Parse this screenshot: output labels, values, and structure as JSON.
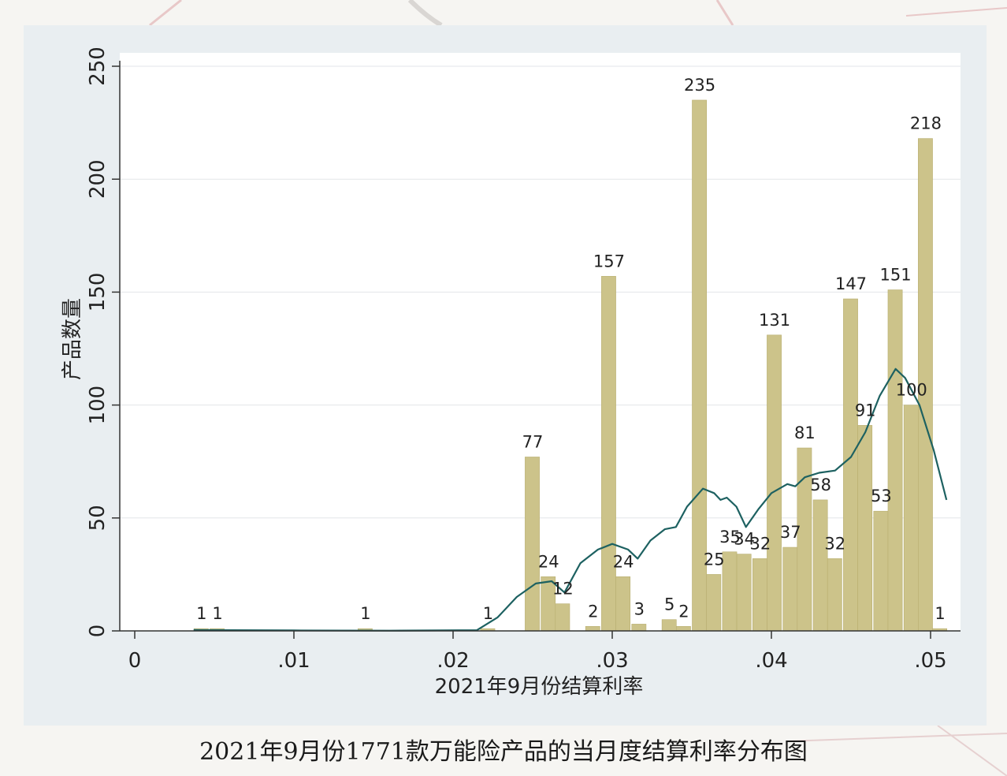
{
  "caption": "2021年9月份1771款万能险产品的当月度结算利率分布图",
  "colors": {
    "bar_fill": "#ccc38a",
    "bar_stroke": "#b8ae70",
    "density_line": "#1d6161",
    "plot_bg": "#ffffff",
    "panel_bg": "#e9eef1",
    "text": "#222222"
  },
  "chart_data": {
    "type": "bar",
    "title": "",
    "xlabel": "2021年9月份结算利率",
    "ylabel": "产品数量",
    "xlim": [
      0,
      0.051
    ],
    "ylim": [
      0,
      250
    ],
    "grid": true,
    "x_ticks": [
      {
        "value": 0,
        "label": "0"
      },
      {
        "value": 0.01,
        "label": ".01"
      },
      {
        "value": 0.02,
        "label": ".02"
      },
      {
        "value": 0.03,
        "label": ".03"
      },
      {
        "value": 0.04,
        "label": ".04"
      },
      {
        "value": 0.05,
        "label": ".05"
      }
    ],
    "y_ticks": [
      {
        "value": 0,
        "label": "0"
      },
      {
        "value": 50,
        "label": "50"
      },
      {
        "value": 100,
        "label": "100"
      },
      {
        "value": 150,
        "label": "150"
      },
      {
        "value": 200,
        "label": "200"
      },
      {
        "value": 250,
        "label": "250"
      }
    ],
    "bin_width": 0.00095,
    "bars": [
      {
        "x": 0.0042,
        "value": 1,
        "label": "1"
      },
      {
        "x": 0.0052,
        "value": 1,
        "label": "1"
      },
      {
        "x": 0.0145,
        "value": 1,
        "label": "1"
      },
      {
        "x": 0.0222,
        "value": 1,
        "label": "1"
      },
      {
        "x": 0.025,
        "value": 77,
        "label": "77"
      },
      {
        "x": 0.026,
        "value": 24,
        "label": "24"
      },
      {
        "x": 0.0269,
        "value": 12,
        "label": "12"
      },
      {
        "x": 0.0288,
        "value": 2,
        "label": "2"
      },
      {
        "x": 0.0298,
        "value": 157,
        "label": "157"
      },
      {
        "x": 0.0307,
        "value": 24,
        "label": "24"
      },
      {
        "x": 0.0317,
        "value": 3,
        "label": "3"
      },
      {
        "x": 0.0336,
        "value": 5,
        "label": "5"
      },
      {
        "x": 0.0345,
        "value": 2,
        "label": "2"
      },
      {
        "x": 0.0355,
        "value": 235,
        "label": "235"
      },
      {
        "x": 0.0364,
        "value": 25,
        "label": "25"
      },
      {
        "x": 0.0374,
        "value": 35,
        "label": "35"
      },
      {
        "x": 0.0383,
        "value": 34,
        "label": "34"
      },
      {
        "x": 0.0393,
        "value": 32,
        "label": "32"
      },
      {
        "x": 0.0402,
        "value": 131,
        "label": "131"
      },
      {
        "x": 0.0412,
        "value": 37,
        "label": "37"
      },
      {
        "x": 0.0421,
        "value": 81,
        "label": "81"
      },
      {
        "x": 0.0431,
        "value": 58,
        "label": "58"
      },
      {
        "x": 0.044,
        "value": 32,
        "label": "32"
      },
      {
        "x": 0.045,
        "value": 147,
        "label": "147"
      },
      {
        "x": 0.0459,
        "value": 91,
        "label": "91"
      },
      {
        "x": 0.0469,
        "value": 53,
        "label": "53"
      },
      {
        "x": 0.0478,
        "value": 151,
        "label": "151"
      },
      {
        "x": 0.0488,
        "value": 100,
        "label": "100"
      },
      {
        "x": 0.0497,
        "value": 218,
        "label": "218"
      },
      {
        "x": 0.0506,
        "value": 1,
        "label": "1"
      }
    ],
    "density_curve": [
      [
        0.0037,
        0.4
      ],
      [
        0.01,
        0.2
      ],
      [
        0.016,
        0.1
      ],
      [
        0.0215,
        0.3
      ],
      [
        0.0228,
        6
      ],
      [
        0.024,
        15
      ],
      [
        0.0252,
        21
      ],
      [
        0.0262,
        22
      ],
      [
        0.027,
        17
      ],
      [
        0.028,
        30
      ],
      [
        0.0291,
        36
      ],
      [
        0.03,
        38.5
      ],
      [
        0.031,
        36
      ],
      [
        0.0316,
        32
      ],
      [
        0.0324,
        40
      ],
      [
        0.0333,
        45
      ],
      [
        0.034,
        46
      ],
      [
        0.0347,
        55
      ],
      [
        0.0357,
        63
      ],
      [
        0.0364,
        61
      ],
      [
        0.0368,
        58
      ],
      [
        0.0372,
        59
      ],
      [
        0.0378,
        55
      ],
      [
        0.0384,
        46
      ],
      [
        0.0392,
        54
      ],
      [
        0.04,
        61
      ],
      [
        0.041,
        65
      ],
      [
        0.0415,
        64
      ],
      [
        0.0421,
        68
      ],
      [
        0.043,
        70
      ],
      [
        0.044,
        71
      ],
      [
        0.045,
        77
      ],
      [
        0.0459,
        88
      ],
      [
        0.0468,
        104
      ],
      [
        0.0478,
        116
      ],
      [
        0.0484,
        112
      ],
      [
        0.0493,
        100
      ],
      [
        0.0502,
        80
      ],
      [
        0.051,
        58
      ]
    ]
  }
}
